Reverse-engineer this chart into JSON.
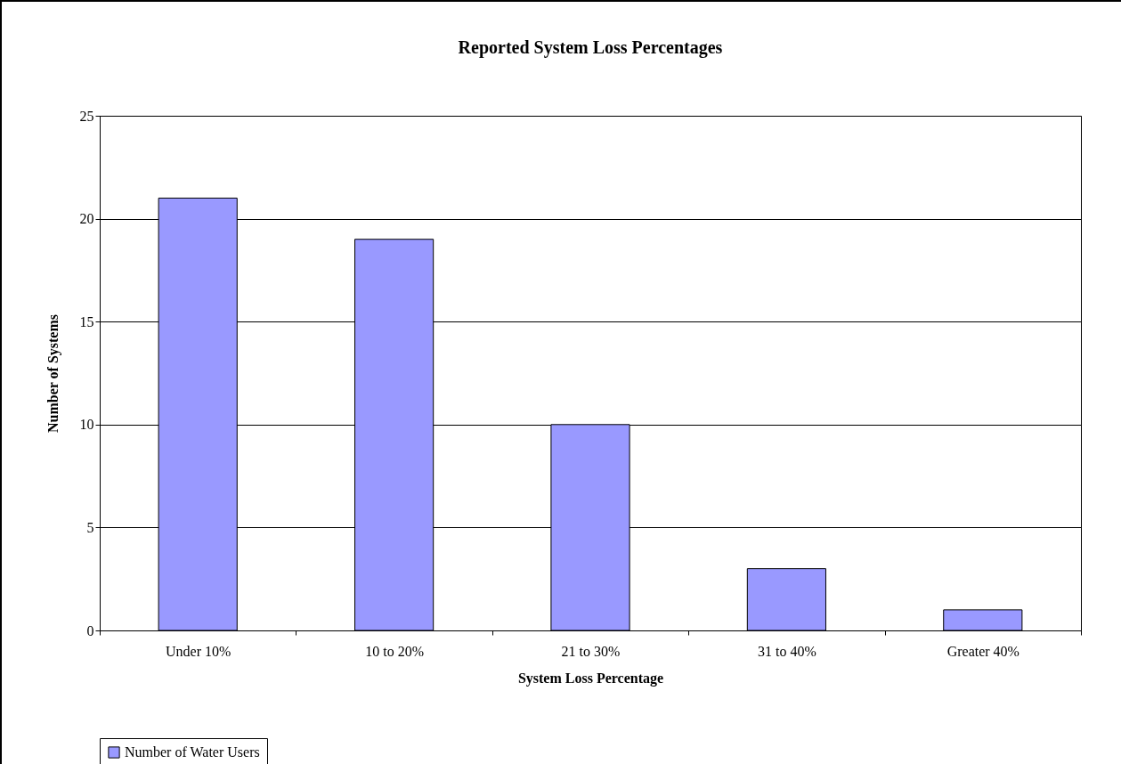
{
  "chart_data": {
    "type": "bar",
    "title": "Reported System Loss Percentages",
    "xlabel": "System Loss Percentage",
    "ylabel": "Number of Systems",
    "categories": [
      "Under 10%",
      "10 to 20%",
      "21 to 30%",
      "31 to 40%",
      "Greater 40%"
    ],
    "series": [
      {
        "name": "Number of Water Users",
        "color": "#9999ff",
        "values": [
          21,
          19,
          10,
          3,
          1
        ]
      }
    ],
    "ylim": [
      0,
      25
    ],
    "yticks": [
      0,
      5,
      10,
      15,
      20,
      25
    ],
    "grid": "y",
    "legend": "bottom"
  }
}
